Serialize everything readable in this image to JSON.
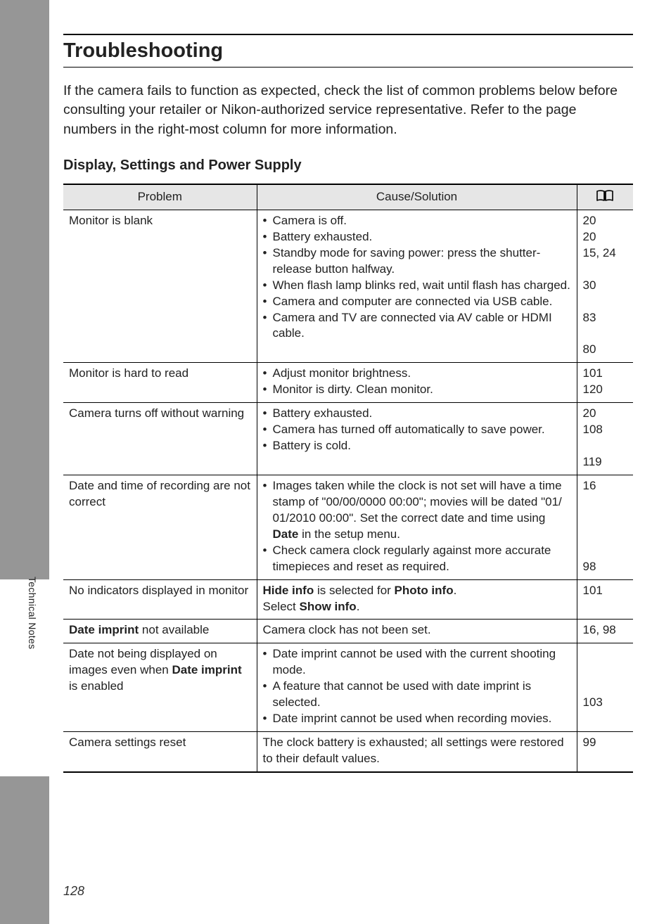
{
  "page": {
    "title": "Troubleshooting",
    "intro": "If the camera fails to function as expected, check the list of common problems below before consulting your retailer or Nikon-authorized service representative. Refer to the page numbers in the right-most column for more information.",
    "section_heading": "Display, Settings and Power Supply",
    "side_label": "Technical Notes",
    "page_number": "128"
  },
  "table": {
    "header": {
      "problem": "Problem",
      "cause": "Cause/Solution",
      "page_icon_name": "book-icon"
    },
    "col_widths": {
      "problem": 275,
      "page": 80
    },
    "colors": {
      "header_bg": "#e6e6e6",
      "border": "#000000",
      "page_bg": "#ffffff",
      "outer_bg": "#969696"
    },
    "font": {
      "body_size_pt": 13,
      "header_size_pt": 13,
      "title_size_pt": 22
    }
  },
  "rows": [
    {
      "problem_plain": "Monitor is blank",
      "cause_bullets": [
        "Camera is off.",
        "Battery exhausted.",
        "Standby mode for saving power: press the shutter-release button halfway.",
        "When flash lamp blinks red, wait until flash has charged.",
        "Camera and computer are connected via USB cable.",
        "Camera and TV are connected via AV cable or HDMI cable."
      ],
      "pages": [
        "20",
        "20",
        "15, 24",
        "",
        "30",
        "",
        "83",
        "",
        "80"
      ]
    },
    {
      "problem_plain": "Monitor is hard to read",
      "cause_bullets": [
        "Adjust monitor brightness.",
        "Monitor is dirty. Clean monitor."
      ],
      "pages": [
        "101",
        "120"
      ]
    },
    {
      "problem_plain": "Camera turns off without warning",
      "cause_bullets": [
        "Battery exhausted.",
        "Camera has turned off automatically to save power.",
        "Battery is cold."
      ],
      "pages": [
        "20",
        "108",
        "",
        "119"
      ]
    },
    {
      "problem_plain": "Date and time of recording are not correct",
      "cause_bullets_html": [
        "Images taken while the clock is not set will have a time stamp of \"00/00/0000 00:00\"; movies will be dated \"01/ 01/2010 00:00\". Set the correct date and time using <b>Date</b> in the setup menu.",
        "Check camera clock regularly against more accurate timepieces and reset as required."
      ],
      "pages": [
        "16",
        "",
        "",
        "",
        "",
        "98"
      ]
    },
    {
      "problem_plain": "No indicators displayed in monitor",
      "cause_html": "<b>Hide info</b> is selected for <b>Photo info</b>.<br>Select <b>Show info</b>.",
      "pages": [
        "101"
      ]
    },
    {
      "problem_html": "<b>Date imprint</b> not available",
      "cause_plain": "Camera clock has not been set.",
      "pages": [
        "16, 98"
      ]
    },
    {
      "problem_html": "Date not being displayed on images even when <b>Date imprint</b> is enabled",
      "cause_bullets": [
        "Date imprint cannot be used with the current shooting mode.",
        "A feature that cannot be used with date imprint is selected.",
        "Date imprint cannot be used when recording movies."
      ],
      "pages": [
        "",
        "",
        "103"
      ],
      "pages_valign": "middle"
    },
    {
      "problem_plain": "Camera settings reset",
      "cause_plain": "The clock battery is exhausted; all settings were restored to their default values.",
      "pages": [
        "99"
      ]
    }
  ]
}
